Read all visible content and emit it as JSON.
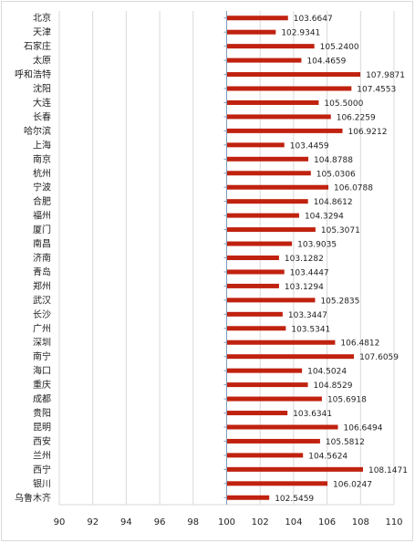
{
  "chart_data": {
    "type": "bar",
    "orientation": "horizontal",
    "categories": [
      "北京",
      "天津",
      "石家庄",
      "太原",
      "呼和浩特",
      "沈阳",
      "大连",
      "长春",
      "哈尔滨",
      "上海",
      "南京",
      "杭州",
      "宁波",
      "合肥",
      "福州",
      "厦门",
      "南昌",
      "济南",
      "青岛",
      "郑州",
      "武汉",
      "长沙",
      "广州",
      "深圳",
      "南宁",
      "海口",
      "重庆",
      "成都",
      "贵阳",
      "昆明",
      "西安",
      "兰州",
      "西宁",
      "银川",
      "乌鲁木齐"
    ],
    "values": [
      103.6647,
      102.9341,
      105.24,
      104.4659,
      107.9871,
      107.4553,
      105.5,
      106.2259,
      106.9212,
      103.4459,
      104.8788,
      105.0306,
      106.0788,
      104.8612,
      104.3294,
      105.3071,
      103.9035,
      103.1282,
      103.4447,
      103.1294,
      105.2835,
      103.3447,
      103.5341,
      106.4812,
      107.6059,
      104.5024,
      104.8529,
      105.6918,
      103.6341,
      106.6494,
      105.5812,
      104.5624,
      108.1471,
      106.0247,
      102.5459
    ],
    "value_labels": [
      "103.6647",
      "102.9341",
      "105.2400",
      "104.4659",
      "107.9871",
      "107.4553",
      "105.5000",
      "106.2259",
      "106.9212",
      "103.4459",
      "104.8788",
      "105.0306",
      "106.0788",
      "104.8612",
      "104.3294",
      "105.3071",
      "103.9035",
      "103.1282",
      "103.4447",
      "103.1294",
      "105.2835",
      "103.3447",
      "103.5341",
      "106.4812",
      "107.6059",
      "104.5024",
      "104.8529",
      "105.6918",
      "103.6341",
      "106.6494",
      "105.5812",
      "104.5624",
      "108.1471",
      "106.0247",
      "102.5459"
    ],
    "xlim": [
      90,
      110
    ],
    "x_ticks": [
      "90",
      "92",
      "94",
      "96",
      "98",
      "100",
      "102",
      "104",
      "106",
      "108",
      "110"
    ],
    "x_tick_values": [
      90,
      92,
      94,
      96,
      98,
      100,
      102,
      104,
      106,
      108,
      110
    ],
    "baseline": 100,
    "grid": "vertical",
    "legend": "none",
    "bar_color": "#c0220f",
    "grid_color": "#d9d9d9",
    "axis_color": "#7f9db9"
  }
}
